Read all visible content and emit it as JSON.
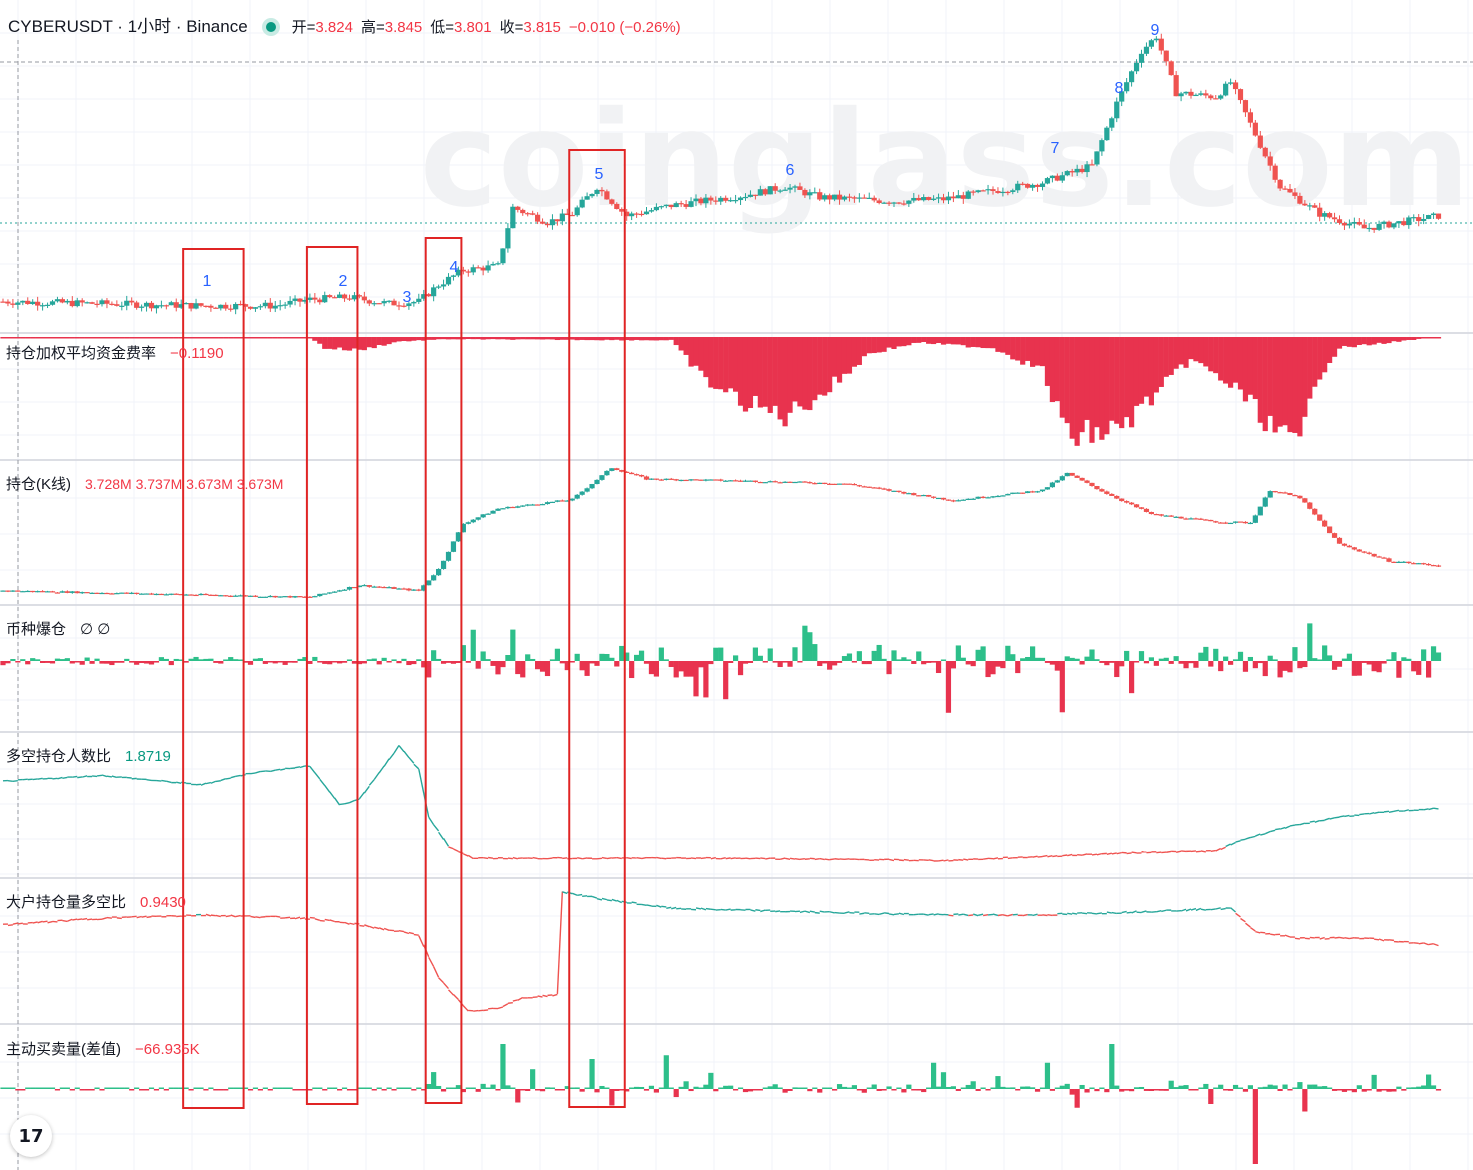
{
  "header": {
    "symbol": "CYBERUSDT · 1小时 · Binance",
    "open_label": "开=",
    "open": "3.824",
    "high_label": "高=",
    "high": "3.845",
    "low_label": "低=",
    "low": "3.801",
    "close_label": "收=",
    "close": "3.815",
    "change": "−0.010 (−0.26%)"
  },
  "watermark": "coinglass.com",
  "panes": {
    "funding": {
      "title": "持仓加权平均资金费率",
      "value": "−0.1190"
    },
    "oi": {
      "title": "持仓(K线)",
      "value": "3.728M  3.737M  3.673M  3.673M"
    },
    "liq": {
      "title": "币种爆仓",
      "value": "∅  ∅"
    },
    "ls_accounts": {
      "title": "多空持仓人数比",
      "value": "1.8719"
    },
    "top_ls": {
      "title": "大户持仓量多空比",
      "value": "0.9430"
    },
    "taker": {
      "title": "主动买卖量(差值)",
      "value": "−66.935K"
    }
  },
  "colors": {
    "up": "#26a69a",
    "down": "#ef5350",
    "up_bar": "#2dbf8a",
    "down_bar": "#e8334e",
    "box": "#e02424",
    "marker": "#2962ff"
  },
  "tv_logo": "17",
  "chart_data": {
    "type": "candlestick",
    "title": "CYBERUSDT · 1小时 · Binance",
    "annotations": [
      {
        "label": "1",
        "bar_range": [
          37,
          48
        ]
      },
      {
        "label": "2",
        "bar_range": [
          62,
          71
        ]
      },
      {
        "label": "3",
        "bar_range": null
      },
      {
        "label": "4",
        "bar_range": [
          86,
          92
        ]
      },
      {
        "label": "5",
        "bar_range": [
          115,
          125
        ]
      },
      {
        "label": "6",
        "bar_range": null
      },
      {
        "label": "7",
        "bar_range": null
      },
      {
        "label": "8",
        "bar_range": null
      },
      {
        "label": "9",
        "bar_range": null
      }
    ],
    "price_keypoints": [
      [
        0,
        2.95
      ],
      [
        20,
        2.94
      ],
      [
        40,
        2.93
      ],
      [
        55,
        2.93
      ],
      [
        62,
        2.96
      ],
      [
        70,
        2.97
      ],
      [
        78,
        2.94
      ],
      [
        84,
        2.95
      ],
      [
        88,
        3.03
      ],
      [
        93,
        3.1
      ],
      [
        100,
        3.12
      ],
      [
        103,
        3.4
      ],
      [
        110,
        3.33
      ],
      [
        115,
        3.37
      ],
      [
        120,
        3.5
      ],
      [
        126,
        3.36
      ],
      [
        135,
        3.41
      ],
      [
        150,
        3.46
      ],
      [
        158,
        3.5
      ],
      [
        165,
        3.45
      ],
      [
        180,
        3.43
      ],
      [
        190,
        3.44
      ],
      [
        200,
        3.48
      ],
      [
        210,
        3.52
      ],
      [
        220,
        3.6
      ],
      [
        225,
        3.9
      ],
      [
        230,
        4.15
      ],
      [
        233,
        4.22
      ],
      [
        237,
        3.95
      ],
      [
        245,
        3.93
      ],
      [
        248,
        4.0
      ],
      [
        253,
        3.75
      ],
      [
        258,
        3.5
      ],
      [
        266,
        3.37
      ],
      [
        275,
        3.3
      ],
      [
        290,
        3.36
      ]
    ],
    "funding_keypoints": [
      [
        0,
        0
      ],
      [
        62,
        0
      ],
      [
        65,
        -0.01
      ],
      [
        72,
        -0.012
      ],
      [
        80,
        -0.004
      ],
      [
        90,
        -0.002
      ],
      [
        135,
        -0.003
      ],
      [
        142,
        -0.04
      ],
      [
        150,
        -0.06
      ],
      [
        158,
        -0.072
      ],
      [
        166,
        -0.05
      ],
      [
        175,
        -0.015
      ],
      [
        185,
        -0.005
      ],
      [
        200,
        -0.01
      ],
      [
        210,
        -0.03
      ],
      [
        215,
        -0.09
      ],
      [
        225,
        -0.085
      ],
      [
        230,
        -0.065
      ],
      [
        240,
        -0.02
      ],
      [
        250,
        -0.05
      ],
      [
        258,
        -0.09
      ],
      [
        262,
        -0.1
      ],
      [
        265,
        -0.04
      ],
      [
        270,
        -0.01
      ],
      [
        290,
        0
      ]
    ],
    "oi_keypoints": [
      [
        0,
        2.4
      ],
      [
        45,
        2.35
      ],
      [
        62,
        2.33
      ],
      [
        72,
        2.46
      ],
      [
        84,
        2.4
      ],
      [
        88,
        2.63
      ],
      [
        93,
        3.12
      ],
      [
        100,
        3.28
      ],
      [
        115,
        3.38
      ],
      [
        123,
        3.72
      ],
      [
        130,
        3.6
      ],
      [
        150,
        3.58
      ],
      [
        170,
        3.55
      ],
      [
        192,
        3.37
      ],
      [
        210,
        3.48
      ],
      [
        215,
        3.66
      ],
      [
        222,
        3.47
      ],
      [
        232,
        3.22
      ],
      [
        245,
        3.14
      ],
      [
        252,
        3.13
      ],
      [
        256,
        3.48
      ],
      [
        262,
        3.4
      ],
      [
        270,
        2.9
      ],
      [
        280,
        2.72
      ],
      [
        290,
        2.67
      ]
    ],
    "ls_accounts_keypoints": [
      [
        0,
        2.45
      ],
      [
        20,
        2.5
      ],
      [
        40,
        2.42
      ],
      [
        50,
        2.52
      ],
      [
        62,
        2.58
      ],
      [
        68,
        2.25
      ],
      [
        72,
        2.3
      ],
      [
        80,
        2.75
      ],
      [
        84,
        2.55
      ],
      [
        86,
        2.15
      ],
      [
        90,
        1.9
      ],
      [
        95,
        1.8
      ],
      [
        110,
        1.8
      ],
      [
        150,
        1.8
      ],
      [
        190,
        1.78
      ],
      [
        230,
        1.85
      ],
      [
        245,
        1.86
      ],
      [
        250,
        1.95
      ],
      [
        258,
        2.05
      ],
      [
        270,
        2.15
      ],
      [
        282,
        2.2
      ],
      [
        290,
        2.22
      ]
    ],
    "top_ls_keypoints": [
      [
        0,
        1.12
      ],
      [
        20,
        1.14
      ],
      [
        40,
        1.15
      ],
      [
        62,
        1.14
      ],
      [
        72,
        1.12
      ],
      [
        84,
        1.09
      ],
      [
        88,
        0.96
      ],
      [
        94,
        0.86
      ],
      [
        100,
        0.87
      ],
      [
        105,
        0.9
      ],
      [
        112,
        0.91
      ],
      [
        113,
        1.22
      ],
      [
        120,
        1.2
      ],
      [
        125,
        1.19
      ],
      [
        135,
        1.17
      ],
      [
        160,
        1.16
      ],
      [
        190,
        1.15
      ],
      [
        210,
        1.15
      ],
      [
        230,
        1.16
      ],
      [
        248,
        1.17
      ],
      [
        253,
        1.1
      ],
      [
        262,
        1.08
      ],
      [
        275,
        1.08
      ],
      [
        290,
        1.06
      ]
    ],
    "taker_spikes": [
      [
        101,
        0.6
      ],
      [
        104,
        -0.18
      ],
      [
        134,
        0.45
      ],
      [
        119,
        0.4
      ],
      [
        123,
        -0.22
      ],
      [
        224,
        0.6
      ],
      [
        217,
        -0.25
      ],
      [
        253,
        -1.0
      ],
      [
        188,
        0.35
      ],
      [
        211,
        0.35
      ],
      [
        244,
        -0.2
      ],
      [
        263,
        -0.3
      ]
    ]
  }
}
